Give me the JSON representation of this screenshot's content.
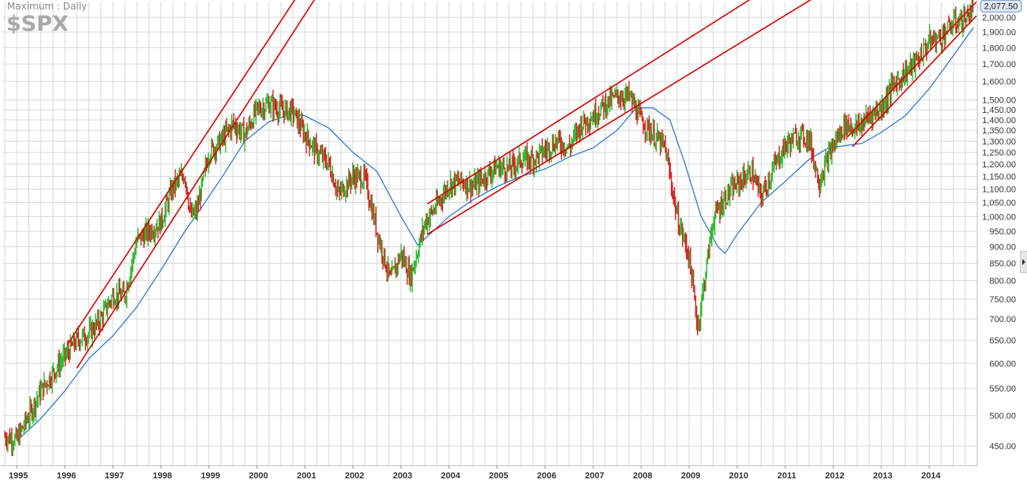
{
  "header": {
    "period_label": "Maximum : Daily",
    "symbol": "$SPX"
  },
  "colors": {
    "background": "#ffffff",
    "grid": "#d9d9d9",
    "price_up": "#2db82d",
    "price_down": "#d62020",
    "trend_channel": "#d90000",
    "moving_average": "#1f6fd1",
    "axis_text": "#333333",
    "last_price_badge_border": "#6c8ebf",
    "last_price_badge_fill": "#dfe9f7"
  },
  "chart_data": {
    "type": "line",
    "title": "",
    "ylabel": "",
    "xlabel": "",
    "y_scale": "log",
    "ylim": [
      430,
      2100
    ],
    "xlim": [
      1994.7,
      2015.0
    ],
    "grid": true,
    "last_price_label": "2,077.50",
    "x_ticks": [
      1995,
      1996,
      1997,
      1998,
      1999,
      2000,
      2001,
      2002,
      2003,
      2004,
      2005,
      2006,
      2007,
      2008,
      2009,
      2010,
      2011,
      2012,
      2013,
      2014
    ],
    "x_tick_labels": [
      "1995",
      "1996",
      "1997",
      "1998",
      "1999",
      "2000",
      "2001",
      "2002",
      "2003",
      "2004",
      "2005",
      "2006",
      "2007",
      "2008",
      "2009",
      "2010",
      "2011",
      "2012",
      "2013",
      "2014"
    ],
    "y_ticks": [
      450,
      500,
      550,
      600,
      650,
      700,
      750,
      800,
      850,
      900,
      950,
      1000,
      1050,
      1100,
      1150,
      1200,
      1250,
      1300,
      1350,
      1400,
      1450,
      1500,
      1600,
      1700,
      1800,
      1900,
      2000
    ],
    "y_tick_labels": [
      "450.00",
      "500.00",
      "550.00",
      "600.00",
      "650.00",
      "700.00",
      "750.00",
      "800.00",
      "850.00",
      "900.00",
      "950.00",
      "1,000.00",
      "1,050.00",
      "1,100.00",
      "1,150.00",
      "1,200.00",
      "1,250.00",
      "1,300.00",
      "1,350.00",
      "1,400.00",
      "1,450.00",
      "1,500.00",
      "1,600.00",
      "1,700.00",
      "1,800.00",
      "1,900.00",
      "2,000.00"
    ],
    "series": [
      {
        "kind": "price",
        "x": [
          1994.75,
          1995.0,
          1995.25,
          1995.5,
          1995.75,
          1996.0,
          1996.25,
          1996.5,
          1996.75,
          1997.0,
          1997.25,
          1997.5,
          1997.75,
          1998.0,
          1998.25,
          1998.5,
          1998.62,
          1998.75,
          1999.0,
          1999.25,
          1999.5,
          1999.75,
          2000.0,
          2000.25,
          2000.5,
          2000.75,
          2001.0,
          2001.25,
          2001.5,
          2001.7,
          2002.0,
          2002.25,
          2002.5,
          2002.78,
          2003.0,
          2003.2,
          2003.5,
          2003.75,
          2004.0,
          2004.25,
          2004.5,
          2004.75,
          2005.0,
          2005.25,
          2005.5,
          2005.75,
          2006.0,
          2006.25,
          2006.5,
          2006.75,
          2007.0,
          2007.25,
          2007.5,
          2007.75,
          2008.0,
          2008.25,
          2008.5,
          2008.75,
          2009.0,
          2009.18,
          2009.5,
          2009.75,
          2010.0,
          2010.3,
          2010.5,
          2010.75,
          2011.0,
          2011.3,
          2011.5,
          2011.7,
          2012.0,
          2012.25,
          2012.5,
          2012.75,
          2013.0,
          2013.25,
          2013.5,
          2013.75,
          2014.0,
          2014.25,
          2014.5,
          2014.75,
          2014.92
        ],
        "values": [
          465,
          460,
          500,
          545,
          580,
          615,
          650,
          665,
          700,
          760,
          760,
          920,
          950,
          980,
          1110,
          1160,
          1000,
          1020,
          1250,
          1300,
          1380,
          1330,
          1450,
          1480,
          1450,
          1440,
          1330,
          1250,
          1200,
          1080,
          1150,
          1140,
          950,
          800,
          880,
          810,
          980,
          1040,
          1120,
          1130,
          1110,
          1150,
          1190,
          1180,
          1220,
          1220,
          1260,
          1300,
          1270,
          1380,
          1420,
          1480,
          1520,
          1520,
          1400,
          1330,
          1270,
          1000,
          870,
          680,
          990,
          1070,
          1120,
          1170,
          1070,
          1180,
          1280,
          1330,
          1310,
          1130,
          1280,
          1380,
          1360,
          1420,
          1460,
          1580,
          1650,
          1720,
          1840,
          1870,
          1960,
          1990,
          2077
        ]
      },
      {
        "kind": "moving_average",
        "x": [
          1995.0,
          1995.5,
          1996.0,
          1996.5,
          1997.0,
          1997.5,
          1998.0,
          1998.5,
          1998.8,
          1999.25,
          1999.75,
          2000.25,
          2000.75,
          2001.0,
          2001.5,
          2002.0,
          2002.5,
          2003.0,
          2003.35,
          2003.6,
          2004.0,
          2004.5,
          2005.0,
          2005.5,
          2006.0,
          2006.5,
          2007.0,
          2007.5,
          2007.9,
          2008.25,
          2008.6,
          2008.9,
          2009.25,
          2009.6,
          2009.75,
          2010.0,
          2010.5,
          2011.0,
          2011.5,
          2011.9,
          2012.25,
          2012.6,
          2013.0,
          2013.5,
          2014.0,
          2014.5,
          2014.92
        ],
        "values": [
          458,
          495,
          545,
          610,
          660,
          730,
          830,
          950,
          1020,
          1140,
          1300,
          1390,
          1430,
          1420,
          1360,
          1250,
          1170,
          1000,
          905,
          940,
          1000,
          1060,
          1110,
          1150,
          1180,
          1230,
          1270,
          1350,
          1460,
          1460,
          1400,
          1210,
          1000,
          900,
          880,
          940,
          1050,
          1130,
          1220,
          1270,
          1280,
          1290,
          1340,
          1420,
          1560,
          1750,
          1930
        ]
      }
    ],
    "trendlines": [
      {
        "x1": 1996.05,
        "y1": 640,
        "x2": 2001.1,
        "y2": 2300
      },
      {
        "x1": 1996.25,
        "y1": 590,
        "x2": 2001.5,
        "y2": 2300
      },
      {
        "x1": 2003.55,
        "y1": 1045,
        "x2": 2011.0,
        "y2": 2300
      },
      {
        "x1": 2003.55,
        "y1": 940,
        "x2": 2012.3,
        "y2": 2300
      },
      {
        "x1": 2012.3,
        "y1": 1320,
        "x2": 2014.98,
        "y2": 2110
      },
      {
        "x1": 2012.4,
        "y1": 1275,
        "x2": 2014.98,
        "y2": 2010
      }
    ]
  }
}
